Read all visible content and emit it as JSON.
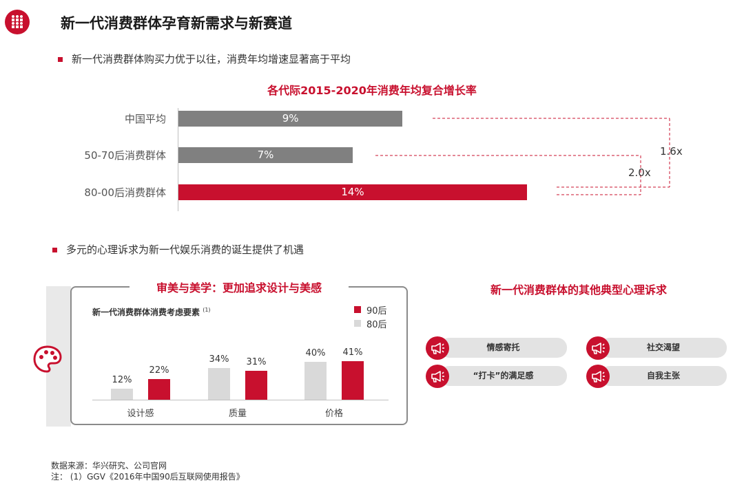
{
  "header": {
    "title": "新一代消费群体孕育新需求与新赛道",
    "bullet1": "新一代消费群体购买力优于以往，消费年均增速显著高于平均",
    "bullet2": "多元的心理诉求为新一代娱乐消费的诞生提供了机遇"
  },
  "colors": {
    "accent": "#c8102e",
    "gray_bar": "#808080",
    "light_bar": "#d9d9d9"
  },
  "chart_data": [
    {
      "type": "bar",
      "orientation": "horizontal",
      "title": "各代际2015-2020年消费年均复合增长率",
      "categories": [
        "中国平均",
        "50-70后消费群体",
        "80-00后消费群体"
      ],
      "values": [
        9,
        7,
        14
      ],
      "value_labels": [
        "9%",
        "7%",
        "14%"
      ],
      "colors": [
        "#808080",
        "#808080",
        "#c8102e"
      ],
      "annotations": [
        "1.6x",
        "2.0x"
      ]
    },
    {
      "type": "bar",
      "title": "审美与美学：更加追求设计与美感",
      "subtitle": "新一代消费群体消费考虑要素",
      "subtitle_note": "(1)",
      "categories": [
        "设计感",
        "质量",
        "价格"
      ],
      "series": [
        {
          "name": "90后",
          "values": [
            22,
            31,
            41
          ],
          "labels": [
            "22%",
            "31%",
            "41%"
          ],
          "color": "#c8102e"
        },
        {
          "name": "80后",
          "values": [
            12,
            34,
            40
          ],
          "labels": [
            "12%",
            "34%",
            "40%"
          ],
          "color": "#d9d9d9"
        }
      ],
      "legend_position": "top-right"
    }
  ],
  "right_panel": {
    "title": "新一代消费群体的其他典型心理诉求",
    "items": [
      "情感寄托",
      "社交渴望",
      "“打卡”的满足感",
      "自我主张"
    ],
    "icon": "megaphone-icon"
  },
  "footer": {
    "source": "数据来源：华兴研究、公司官网",
    "note": "注：  (1）GGV《2016年中国90后互联网使用报告》"
  }
}
